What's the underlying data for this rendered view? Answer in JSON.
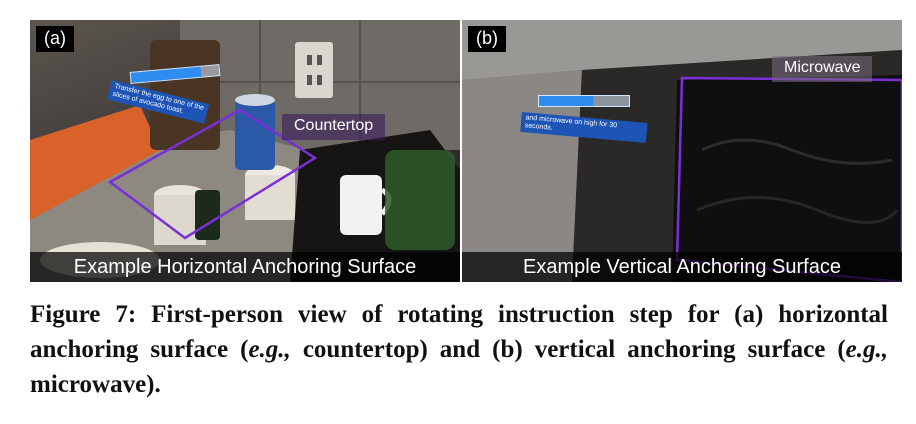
{
  "panels": [
    {
      "label": "(a)",
      "anchor_label": "Countertop",
      "instruction_text": "Transfer the egg to one of the slices of avocado toast.",
      "progress": 0.8,
      "caption": "Example Horizontal Anchoring Surface"
    },
    {
      "label": "(b)",
      "anchor_label": "Microwave",
      "instruction_text": "and microwave on high for 30 seconds.",
      "progress": 0.6,
      "caption": "Example Vertical Anchoring Surface"
    }
  ],
  "figure_caption": {
    "lead": "Figure 7: First-person view of rotating instruction step for (a) horizontal anchoring surface (",
    "eg1": "e.g.,",
    "mid": " countertop) and (b) vertical anchoring surface (",
    "eg2": "e.g.,",
    "tail": " microwave)."
  },
  "colors": {
    "anchor_outline": "#7b2fd6",
    "hud_progress": "#2f8cf0",
    "hud_panel": "#1d54b6"
  }
}
